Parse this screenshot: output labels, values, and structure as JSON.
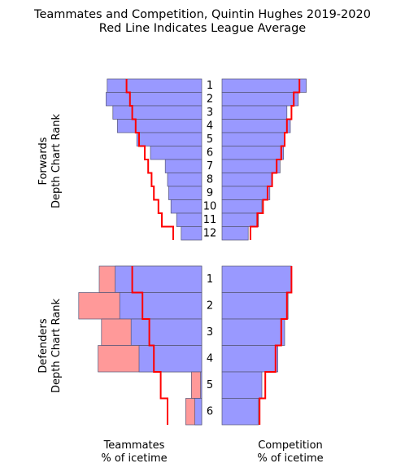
{
  "title_line1": "Teammates and Competition, Quintin Hughes 2019-2020",
  "title_line2": "Red Line Indicates League Average",
  "forwards_ylabel_1": "Forwards",
  "forwards_ylabel_2": "Depth Chart Rank",
  "defenders_ylabel_1": "Defenders",
  "defenders_ylabel_2": "Depth Chart Rank",
  "xlabel_left_1": "Teammates",
  "xlabel_left_2": "% of icetime",
  "xlabel_right_1": "Competition",
  "xlabel_right_2": "% of icetime",
  "colors": {
    "bar_blue": "#9999ff",
    "bar_red": "#ff9999",
    "edge": "#555577",
    "league_line": "#ff0000"
  },
  "chart_data": {
    "type": "bar",
    "orientation": "horizontal, mirrored",
    "forwards": {
      "ranks": [
        "1",
        "2",
        "3",
        "4",
        "5",
        "6",
        "7",
        "8",
        "9",
        "10",
        "11",
        "12"
      ],
      "teammates_pct": [
        0.83,
        0.84,
        0.78,
        0.74,
        0.57,
        0.45,
        0.32,
        0.3,
        0.29,
        0.27,
        0.22,
        0.18
      ],
      "teammates_league_avg": [
        0.66,
        0.63,
        0.61,
        0.58,
        0.55,
        0.5,
        0.47,
        0.44,
        0.42,
        0.38,
        0.35,
        0.25
      ],
      "competition_pct": [
        0.74,
        0.67,
        0.57,
        0.6,
        0.55,
        0.54,
        0.51,
        0.44,
        0.42,
        0.35,
        0.32,
        0.23
      ],
      "competition_league_avg": [
        0.68,
        0.63,
        0.61,
        0.57,
        0.55,
        0.52,
        0.48,
        0.44,
        0.4,
        0.36,
        0.31,
        0.25
      ]
    },
    "defenders": {
      "ranks": [
        "1",
        "2",
        "3",
        "4",
        "5",
        "6"
      ],
      "teammates_forwards_pct": [
        0.14,
        0.36,
        0.26,
        0.36,
        0.08,
        0.08
      ],
      "teammates_defenders_pct": [
        0.76,
        0.72,
        0.62,
        0.55,
        0.01,
        0.06
      ],
      "teammates_league_avg": [
        0.61,
        0.52,
        0.46,
        0.42,
        0.36,
        0.3
      ],
      "competition_pct": [
        0.61,
        0.58,
        0.55,
        0.49,
        0.35,
        0.32
      ],
      "competition_league_avg": [
        0.61,
        0.57,
        0.52,
        0.47,
        0.38,
        0.33
      ]
    }
  }
}
